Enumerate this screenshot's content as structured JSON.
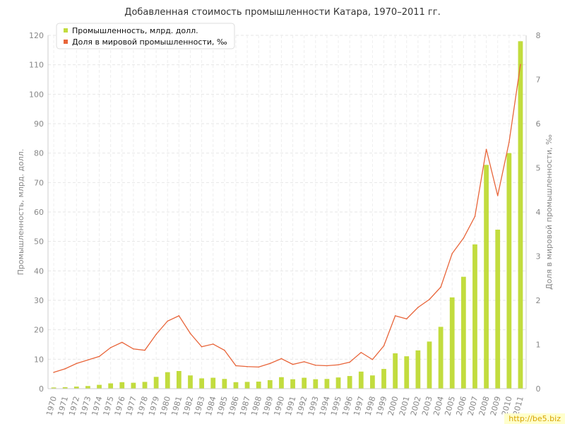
{
  "chart_data": {
    "type": "bar",
    "title": "Добавленная стоимость промышленности Катара, 1970–2011 гг.",
    "ylabel": "Промышленность, млрд. долл.",
    "y2label": "Доля в мировой промышленности, ‰",
    "ylim": [
      0,
      120
    ],
    "y2lim": [
      0,
      8
    ],
    "yticks": [
      0,
      10,
      20,
      30,
      40,
      50,
      60,
      70,
      80,
      90,
      100,
      110,
      120
    ],
    "y2ticks": [
      0,
      1,
      2,
      3,
      4,
      5,
      6,
      7,
      8
    ],
    "grid": true,
    "legend_position": "top-left",
    "categories": [
      "1970",
      "1971",
      "1972",
      "1973",
      "1974",
      "1975",
      "1976",
      "1977",
      "1978",
      "1979",
      "1980",
      "1981",
      "1982",
      "1983",
      "1984",
      "1985",
      "1986",
      "1987",
      "1988",
      "1989",
      "1990",
      "1991",
      "1992",
      "1993",
      "1994",
      "1995",
      "1996",
      "1997",
      "1998",
      "1999",
      "2000",
      "2001",
      "2002",
      "2003",
      "2004",
      "2005",
      "2006",
      "2007",
      "2008",
      "2009",
      "2010",
      "2011"
    ],
    "series": [
      {
        "name": "Промышленность, млрд. долл.",
        "kind": "bar",
        "axis": "left",
        "color": "#c2dc3e",
        "values": [
          0.4,
          0.5,
          0.7,
          0.9,
          1.3,
          1.8,
          2.2,
          2.0,
          2.3,
          4.0,
          5.6,
          6.0,
          4.5,
          3.5,
          3.7,
          3.3,
          2.2,
          2.3,
          2.4,
          2.9,
          3.9,
          3.2,
          3.7,
          3.2,
          3.3,
          3.8,
          4.3,
          5.8,
          4.5,
          6.7,
          12.0,
          11.0,
          13.0,
          16.0,
          21.0,
          31.0,
          38.0,
          49.0,
          76.0,
          54.0,
          80.0,
          118.0
        ]
      },
      {
        "name": "Доля в мировой промышленности, ‰",
        "kind": "line",
        "axis": "right",
        "color": "#e8653a",
        "values": [
          0.37,
          0.45,
          0.57,
          0.65,
          0.73,
          0.93,
          1.05,
          0.9,
          0.87,
          1.23,
          1.53,
          1.65,
          1.25,
          0.95,
          1.01,
          0.87,
          0.52,
          0.5,
          0.49,
          0.57,
          0.68,
          0.55,
          0.61,
          0.53,
          0.52,
          0.54,
          0.6,
          0.82,
          0.66,
          0.97,
          1.65,
          1.58,
          1.84,
          2.02,
          2.3,
          3.06,
          3.41,
          3.9,
          5.42,
          4.37,
          5.58,
          7.34
        ]
      }
    ]
  },
  "watermark": "http://be5.biz"
}
